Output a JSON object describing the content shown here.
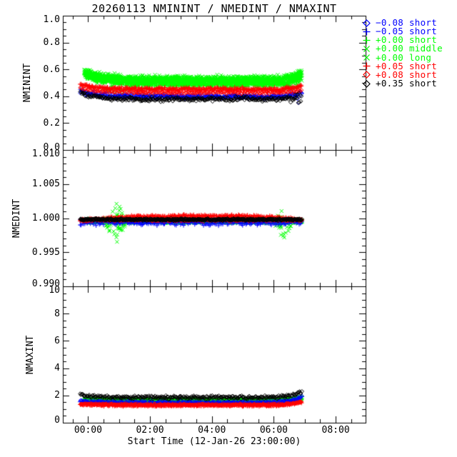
{
  "title": "20260113 NMININT / NMEDINT / NMAXINT",
  "colors": {
    "background": "#ffffff",
    "frame": "#000000",
    "blue": "#0000ff",
    "green": "#00ff00",
    "red": "#ff0000",
    "black": "#000000"
  },
  "legend": {
    "position": "right",
    "items": [
      {
        "symbol": "diamond",
        "color": "#0000ff",
        "label": "−0.08 short"
      },
      {
        "symbol": "plus",
        "color": "#0000ff",
        "label": "−0.05 short"
      },
      {
        "symbol": "plus",
        "color": "#00ff00",
        "label": "+0.00 short"
      },
      {
        "symbol": "x",
        "color": "#00ff00",
        "label": "+0.00 middle"
      },
      {
        "symbol": "x",
        "color": "#00ff00",
        "label": "+0.00 long"
      },
      {
        "symbol": "plus",
        "color": "#ff0000",
        "label": "+0.05 short"
      },
      {
        "symbol": "diamond",
        "color": "#ff0000",
        "label": "+0.08 short"
      },
      {
        "symbol": "diamond",
        "color": "#000000",
        "label": "+0.35 short"
      }
    ]
  },
  "x_axis": {
    "label": "Start Time (12-Jan-26 23:00:00)",
    "tick_labels": [
      "00:00",
      "02:00",
      "04:00",
      "06:00",
      "08:00"
    ],
    "tick_hours": [
      0,
      2,
      4,
      6,
      8
    ],
    "minor_step_hours": 0.5,
    "xlim_hours": [
      -0.8167,
      8.9667
    ],
    "data_start_hours": -0.25,
    "data_end_hours": 6.9
  },
  "chart_data": [
    {
      "type": "scatter",
      "ylabel": "NMININT",
      "ylim": [
        0.0,
        1.0
      ],
      "yticks": {
        "values": [
          0.0,
          0.2,
          0.4,
          0.6,
          0.8,
          1.0
        ],
        "labels": [
          "0.0",
          "0.2",
          "0.4",
          "0.6",
          "0.8",
          "1.0"
        ],
        "minor_step": 0.05
      },
      "series": [
        {
          "name": "+0.00 short",
          "color": "#00ff00",
          "symbol": "plus",
          "n": 550,
          "x0": -0.12,
          "x1": 6.9,
          "y_start": 0.56,
          "y_mid": 0.49,
          "y_end": 0.54,
          "spread": 0.028
        },
        {
          "name": "+0.00 middle",
          "color": "#00ff00",
          "symbol": "x",
          "n": 850,
          "x0": -0.12,
          "x1": 6.9,
          "y_start": 0.57,
          "y_mid": 0.515,
          "y_end": 0.56,
          "spread": 0.025,
          "flares": [
            {
              "t": 0.9,
              "w": 0.9,
              "down": -0.13,
              "frac": 0.18
            },
            {
              "t": 6.6,
              "w": 0.45,
              "down": -0.1,
              "frac": 0.25
            }
          ]
        },
        {
          "name": "+0.00 long",
          "color": "#00ff00",
          "symbol": "x",
          "n": 850,
          "x0": -0.12,
          "x1": 6.9,
          "y_start": 0.59,
          "y_mid": 0.53,
          "y_end": 0.58,
          "spread": 0.027
        },
        {
          "name": "−0.08 short",
          "color": "#0000ff",
          "symbol": "diamond",
          "n": 200,
          "x0": -0.25,
          "x1": 6.9,
          "y_start": 0.43,
          "y_mid": 0.395,
          "y_end": 0.42,
          "spread": 0.02,
          "flares": [
            {
              "t": 6.95,
              "w": 0.35,
              "down": -0.1,
              "frac": 0.5
            }
          ]
        },
        {
          "name": "−0.05 short",
          "color": "#0000ff",
          "symbol": "plus",
          "n": 200,
          "x0": -0.25,
          "x1": 6.9,
          "y_start": 0.44,
          "y_mid": 0.4,
          "y_end": 0.43,
          "spread": 0.02
        },
        {
          "name": "+0.05 short",
          "color": "#ff0000",
          "symbol": "plus",
          "n": 330,
          "x0": -0.25,
          "x1": 6.9,
          "y_start": 0.49,
          "y_mid": 0.452,
          "y_end": 0.48,
          "spread": 0.018
        },
        {
          "name": "+0.08 short",
          "color": "#ff0000",
          "symbol": "diamond",
          "n": 220,
          "x0": -0.25,
          "x1": 6.9,
          "y_start": 0.46,
          "y_mid": 0.428,
          "y_end": 0.44,
          "spread": 0.014
        },
        {
          "name": "+0.35 short",
          "color": "#000000",
          "symbol": "diamond",
          "n": 330,
          "x0": -0.25,
          "x1": 6.9,
          "y_start": 0.425,
          "y_mid": 0.378,
          "y_end": 0.41,
          "spread": 0.02,
          "flares": [
            {
              "t": 6.9,
              "w": 0.4,
              "down": -0.09,
              "frac": 0.4
            }
          ]
        }
      ]
    },
    {
      "type": "scatter",
      "ylabel": "NMEDINT",
      "ylim": [
        0.99,
        1.01
      ],
      "yticks": {
        "values": [
          0.99,
          0.995,
          1.0,
          1.005,
          1.01
        ],
        "labels": [
          "0.990",
          "0.995",
          "1.000",
          "1.005",
          "1.010"
        ],
        "minor_step": 0.001
      },
      "series": [
        {
          "name": "+0.00 short",
          "color": "#00ff00",
          "symbol": "plus",
          "n": 550,
          "x0": -0.12,
          "x1": 6.9,
          "y_start": 0.9996,
          "y_mid": 0.9996,
          "y_end": 0.9996,
          "spread": 0.00025
        },
        {
          "name": "+0.00 middle",
          "color": "#00ff00",
          "symbol": "x",
          "n": 850,
          "x0": -0.12,
          "x1": 6.9,
          "y_start": 0.9995,
          "y_mid": 0.9995,
          "y_end": 0.9995,
          "spread": 0.00025,
          "flares": [
            {
              "t": 0.9,
              "w": 0.35,
              "up": 0.0028,
              "down": -0.0032,
              "frac": 0.55
            },
            {
              "t": 6.3,
              "w": 0.28,
              "up": 0.0022,
              "down": -0.0027,
              "frac": 0.55
            }
          ]
        },
        {
          "name": "+0.00 long",
          "color": "#00ff00",
          "symbol": "x",
          "n": 850,
          "x0": -0.12,
          "x1": 6.9,
          "y_start": 0.9996,
          "y_mid": 0.9996,
          "y_end": 0.9996,
          "spread": 0.00025,
          "flares": [
            {
              "t": 1.0,
              "w": 0.25,
              "up": 0.0012,
              "down": -0.0015,
              "frac": 0.4
            },
            {
              "t": 6.2,
              "w": 0.2,
              "up": 0.001,
              "down": -0.001,
              "frac": 0.4
            }
          ]
        },
        {
          "name": "−0.08 short",
          "color": "#0000ff",
          "symbol": "diamond",
          "n": 200,
          "x0": -0.25,
          "x1": 6.9,
          "y_start": 0.9996,
          "y_mid": 0.9996,
          "y_end": 0.9996,
          "spread": 0.0003
        },
        {
          "name": "−0.05 short",
          "color": "#0000ff",
          "symbol": "plus",
          "n": 200,
          "x0": -0.25,
          "x1": 6.9,
          "y_start": 0.9993,
          "y_mid": 0.9993,
          "y_end": 0.9993,
          "spread": 0.0004
        },
        {
          "name": "+0.05 short",
          "color": "#ff0000",
          "symbol": "plus",
          "n": 330,
          "x0": -0.25,
          "x1": 6.9,
          "y_start": 0.9996,
          "y_mid": 1.0004,
          "y_end": 0.9997,
          "spread": 0.00025,
          "decay_l": 1.3,
          "decay_r": 1.0
        },
        {
          "name": "+0.08 short",
          "color": "#ff0000",
          "symbol": "diamond",
          "n": 220,
          "x0": -0.25,
          "x1": 6.9,
          "y_start": 0.9997,
          "y_mid": 0.9997,
          "y_end": 0.9997,
          "spread": 0.0002
        },
        {
          "name": "+0.35 short",
          "color": "#000000",
          "symbol": "diamond",
          "n": 550,
          "x0": -0.25,
          "x1": 6.9,
          "y_start": 0.9998,
          "y_mid": 0.9998,
          "y_end": 0.9998,
          "spread": 0.00018
        }
      ]
    },
    {
      "type": "scatter",
      "ylabel": "NMAXINT",
      "ylim": [
        0,
        10
      ],
      "yticks": {
        "values": [
          0,
          2,
          4,
          6,
          8,
          10
        ],
        "labels": [
          "0",
          "2",
          "4",
          "6",
          "8",
          "10"
        ],
        "minor_step": 0.5
      },
      "series": [
        {
          "name": "+0.00 short",
          "color": "#00ff00",
          "symbol": "plus",
          "n": 550,
          "x0": -0.12,
          "x1": 6.9,
          "y_start": 1.65,
          "y_mid": 1.6,
          "y_end": 1.78,
          "spread": 0.12
        },
        {
          "name": "+0.00 middle",
          "color": "#00ff00",
          "symbol": "x",
          "n": 850,
          "x0": -0.12,
          "x1": 6.9,
          "y_start": 1.7,
          "y_mid": 1.62,
          "y_end": 1.8,
          "spread": 0.12
        },
        {
          "name": "+0.00 long",
          "color": "#00ff00",
          "symbol": "x",
          "n": 850,
          "x0": -0.12,
          "x1": 6.9,
          "y_start": 1.72,
          "y_mid": 1.65,
          "y_end": 1.85,
          "spread": 0.13
        },
        {
          "name": "−0.08 short",
          "color": "#0000ff",
          "symbol": "diamond",
          "n": 200,
          "x0": -0.25,
          "x1": 6.9,
          "y_start": 1.6,
          "y_mid": 1.5,
          "y_end": 1.95,
          "spread": 0.1
        },
        {
          "name": "−0.05 short",
          "color": "#0000ff",
          "symbol": "plus",
          "n": 200,
          "x0": -0.25,
          "x1": 6.9,
          "y_start": 1.55,
          "y_mid": 1.45,
          "y_end": 1.85,
          "spread": 0.1
        },
        {
          "name": "+0.05 short",
          "color": "#ff0000",
          "symbol": "plus",
          "n": 330,
          "x0": -0.25,
          "x1": 6.9,
          "y_start": 1.35,
          "y_mid": 1.27,
          "y_end": 1.55,
          "spread": 0.09
        },
        {
          "name": "+0.08 short",
          "color": "#ff0000",
          "symbol": "diamond",
          "n": 220,
          "x0": -0.25,
          "x1": 6.9,
          "y_start": 1.4,
          "y_mid": 1.32,
          "y_end": 1.55,
          "spread": 0.08
        },
        {
          "name": "+0.35 short",
          "color": "#000000",
          "symbol": "diamond",
          "n": 330,
          "x0": -0.25,
          "x1": 6.9,
          "y_start": 2.05,
          "y_mid": 1.86,
          "y_end": 2.3,
          "spread": 0.14,
          "decay_l": 0.5,
          "decay_r": 0.3
        }
      ]
    }
  ]
}
